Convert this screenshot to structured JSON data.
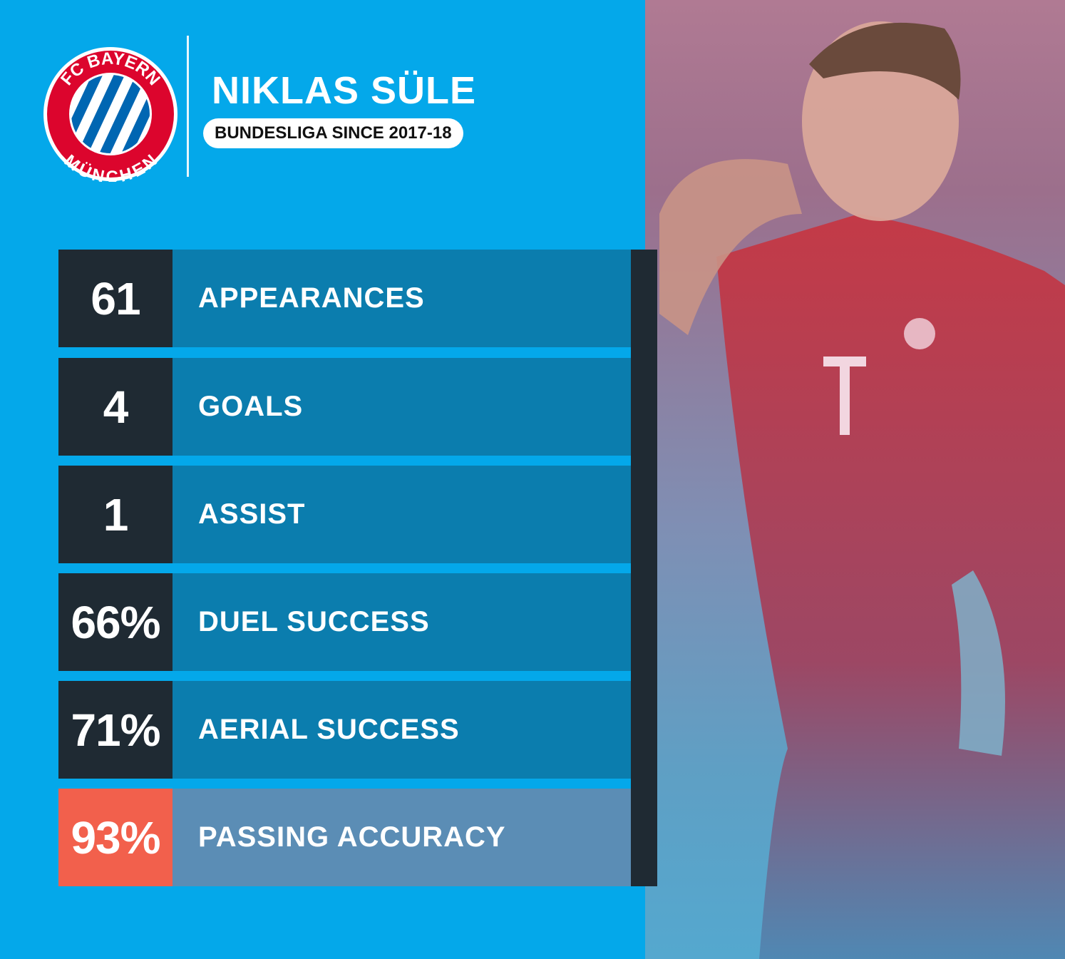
{
  "header": {
    "club_logo": {
      "text_top": "FC BAYERN",
      "text_bottom": "MÜNCHEN",
      "icon": "fc-bayern-crest"
    },
    "player_name": "NIKLAS SÜLE",
    "subtitle": "BUNDESLIGA SINCE 2017-18"
  },
  "stats": [
    {
      "value": "61",
      "label": "APPEARANCES"
    },
    {
      "value": "4",
      "label": "GOALS"
    },
    {
      "value": "1",
      "label": "ASSIST"
    },
    {
      "value": "66%",
      "label": "DUEL SUCCESS"
    },
    {
      "value": "71%",
      "label": "AERIAL SUCCESS"
    },
    {
      "value": "93%",
      "label": "PASSING ACCURACY",
      "highlight": true
    }
  ],
  "colors": {
    "background": "#04a8ea",
    "dark": "#1f2a33",
    "row": "#0b7dae",
    "highlight_value": "#f2604c",
    "highlight_row": "#5b8db5",
    "crest_red": "#dc052d",
    "crest_blue": "#0066b2"
  }
}
